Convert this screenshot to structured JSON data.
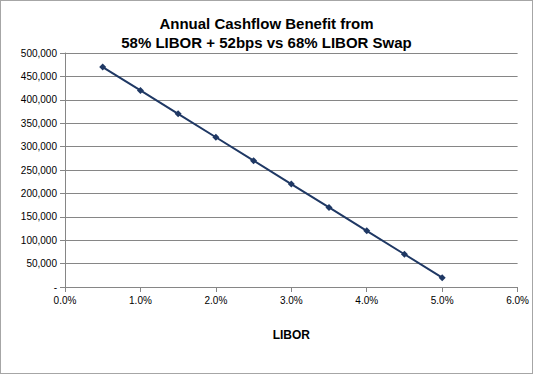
{
  "chart_data": {
    "type": "line",
    "title": "Annual Cashflow Benefit from\n58% LIBOR + 52bps vs 68% LIBOR Swap",
    "x_label": "LIBOR",
    "x": [
      0.5,
      1.0,
      1.5,
      2.0,
      2.5,
      3.0,
      3.5,
      4.0,
      4.5,
      5.0
    ],
    "values": [
      470000,
      420000,
      370000,
      320000,
      270000,
      220000,
      170000,
      120000,
      70000,
      20000
    ],
    "color": "#1f3864",
    "marker": "diamond",
    "line_style": "solid",
    "xlim": [
      0,
      6
    ],
    "xticks": [
      {
        "value": 0,
        "label": "0.0%"
      },
      {
        "value": 1,
        "label": "1.0%"
      },
      {
        "value": 2,
        "label": "2.0%"
      },
      {
        "value": 3,
        "label": "3.0%"
      },
      {
        "value": 4,
        "label": "4.0%"
      },
      {
        "value": 5,
        "label": "5.0%"
      },
      {
        "value": 6,
        "label": "6.0%"
      }
    ],
    "ylim": [
      0,
      500000
    ],
    "yticks": [
      {
        "value": 0,
        "label": "-"
      },
      {
        "value": 50000,
        "label": "50,000"
      },
      {
        "value": 100000,
        "label": "100,000"
      },
      {
        "value": 150000,
        "label": "150,000"
      },
      {
        "value": 200000,
        "label": "200,000"
      },
      {
        "value": 250000,
        "label": "250,000"
      },
      {
        "value": 300000,
        "label": "300,000"
      },
      {
        "value": 350000,
        "label": "350,000"
      },
      {
        "value": 400000,
        "label": "400,000"
      },
      {
        "value": 450000,
        "label": "450,000"
      },
      {
        "value": 500000,
        "label": "500,000"
      }
    ],
    "grid": true
  }
}
